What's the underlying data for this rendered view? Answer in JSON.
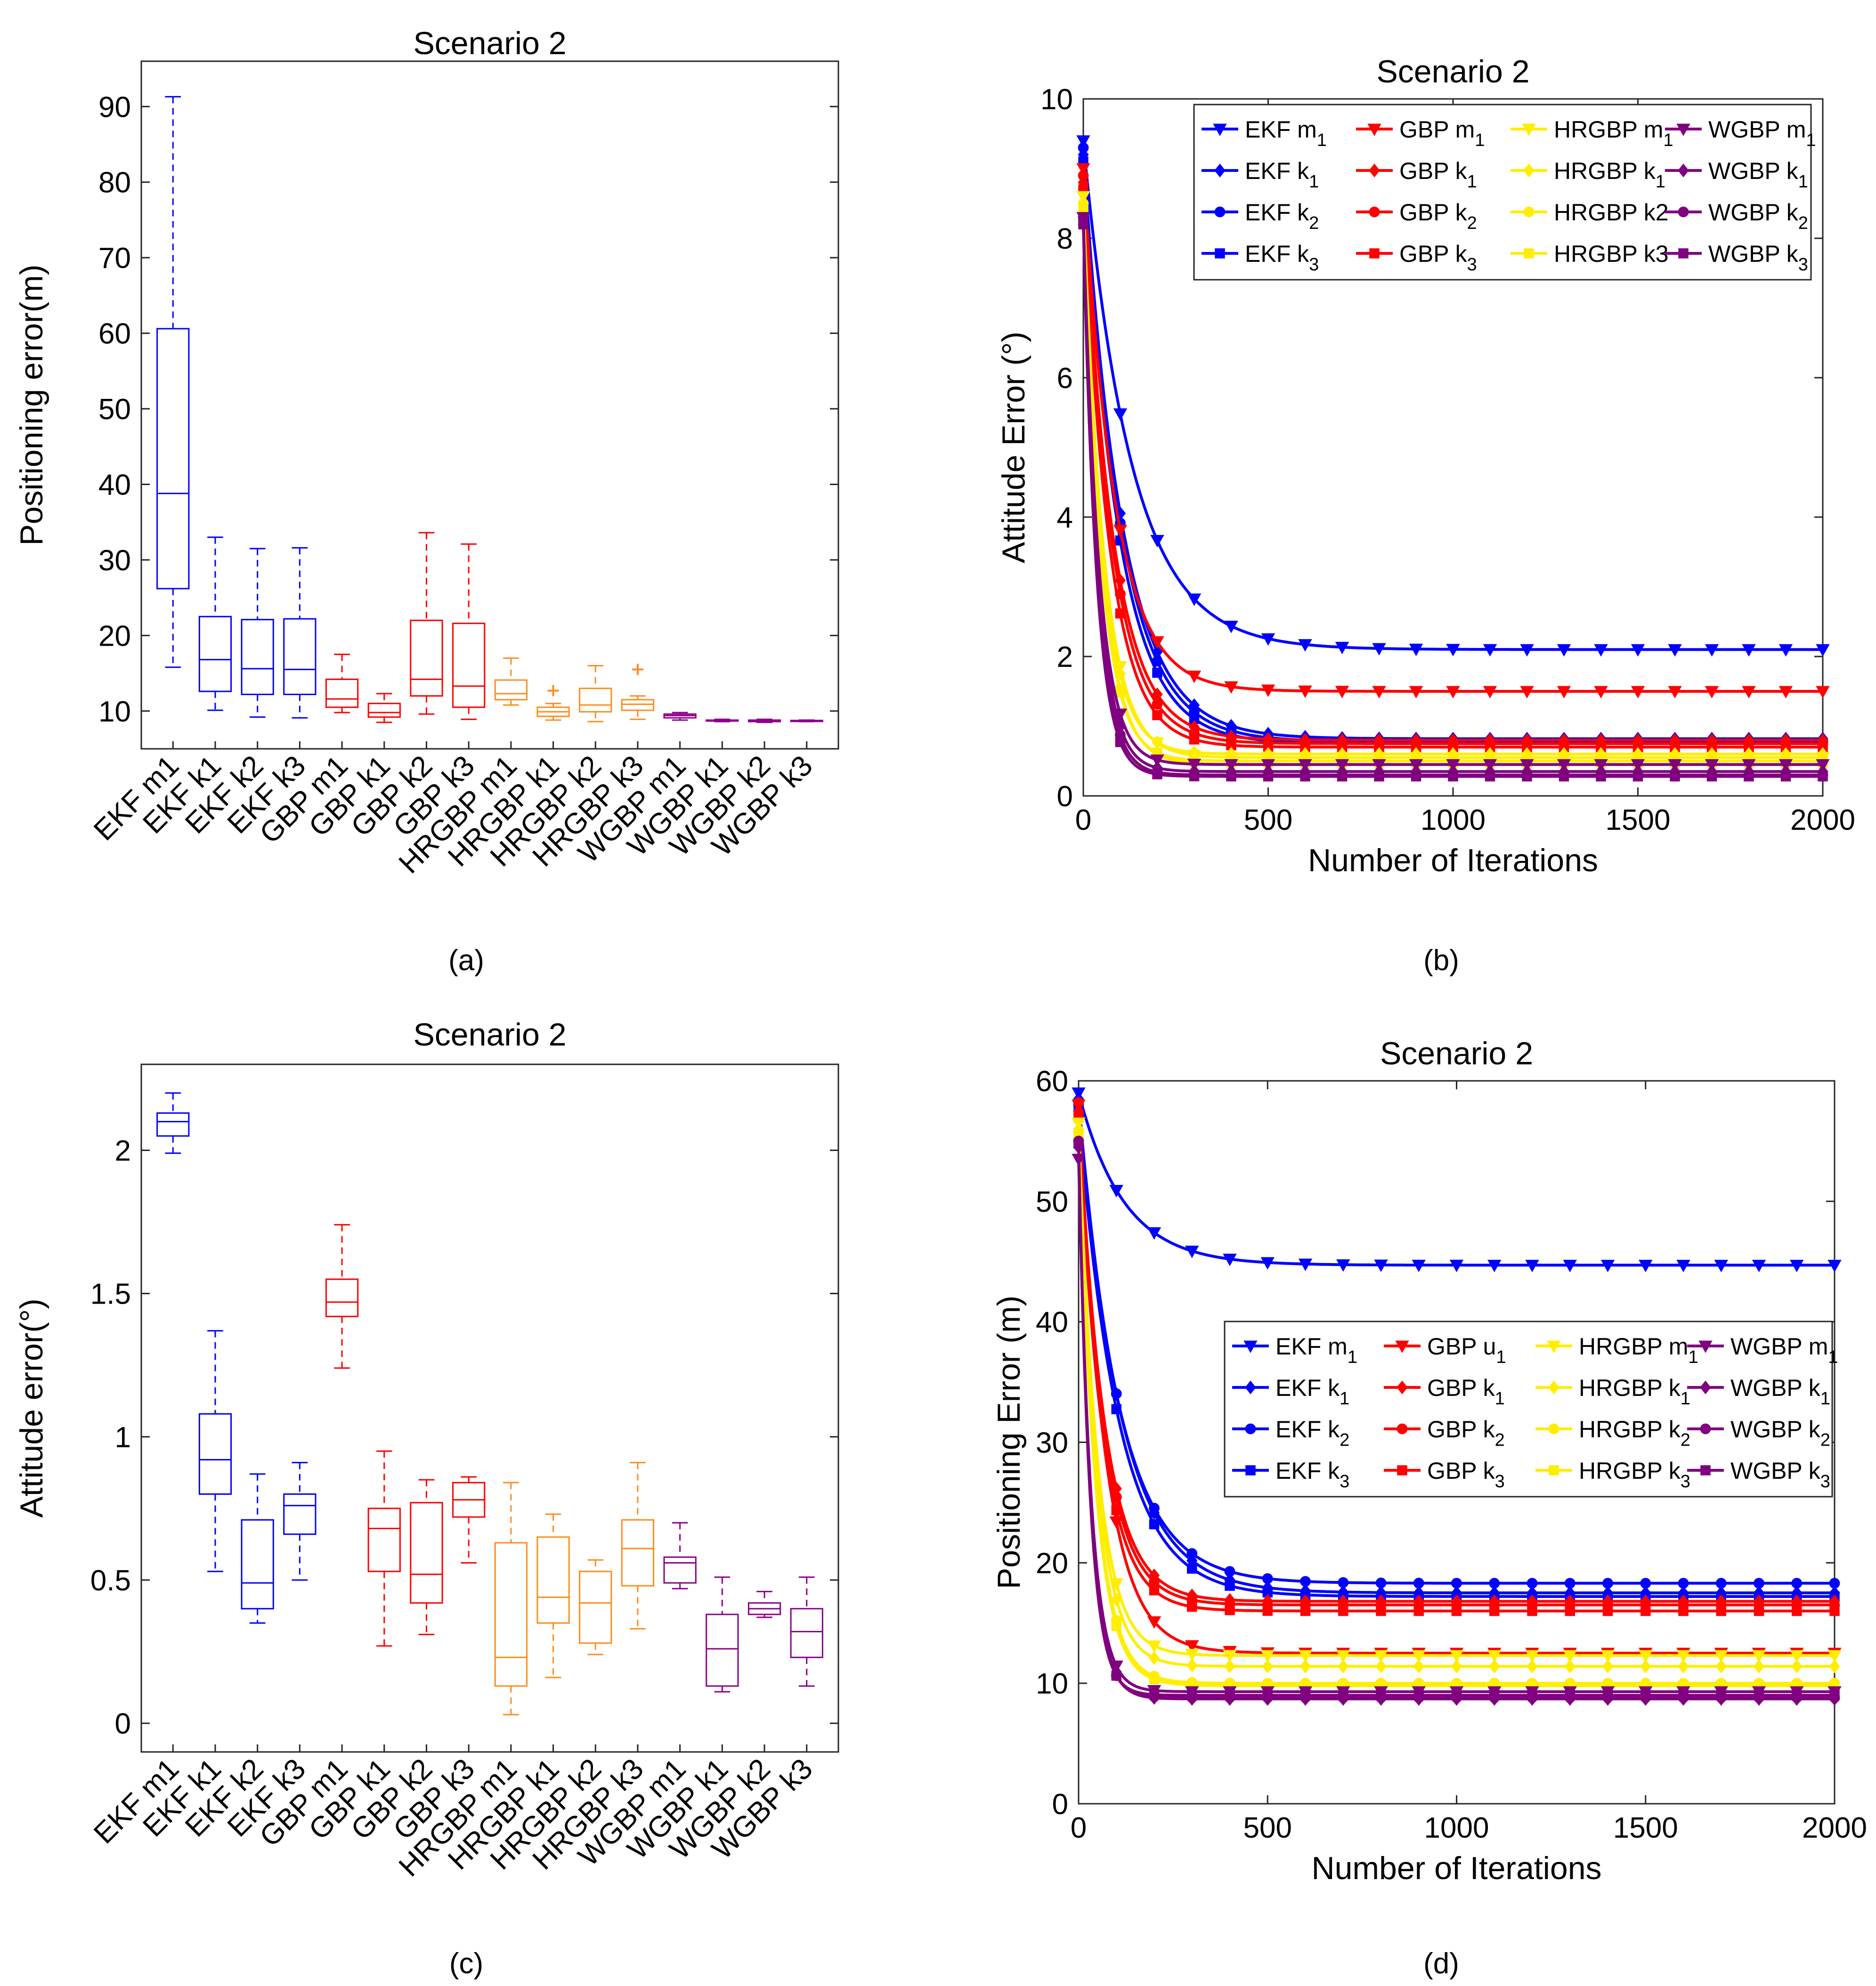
{
  "figure": {
    "captions": [
      "(a)",
      "(b)",
      "(c)",
      "(d)"
    ]
  },
  "panel_a": {
    "caption": "(a)",
    "chart_data": {
      "type": "box",
      "title": "Scenario 2",
      "xlabel": "",
      "ylabel": "Positioning error(m)",
      "ylim": [
        5,
        96
      ],
      "yticks": [
        10,
        20,
        30,
        40,
        50,
        60,
        70,
        80,
        90
      ],
      "categories": [
        "EKF m1",
        "EKF k1",
        "EKF k2",
        "EKF k3",
        "GBP m1",
        "GBP k1",
        "GBP k2",
        "GBP k3",
        "HRGBP m1",
        "HRGBP k1",
        "HRGBP k2",
        "HRGBP k3",
        "WGBP m1",
        "WGBP k1",
        "WGBP k2",
        "WGBP k3"
      ],
      "colors": [
        "#0000ff",
        "#0000ff",
        "#0000ff",
        "#0000ff",
        "#ff0000",
        "#ff0000",
        "#ff0000",
        "#ff0000",
        "#ff8c1a",
        "#ff8c1a",
        "#ff8c1a",
        "#ff8c1a",
        "#8b008b",
        "#8b008b",
        "#8b008b",
        "#8b008b"
      ],
      "boxes": [
        {
          "min": 15.8,
          "q1": 26.2,
          "median": 38.8,
          "q3": 60.6,
          "max": 91.3,
          "outliers": []
        },
        {
          "min": 10.1,
          "q1": 12.6,
          "median": 16.8,
          "q3": 22.5,
          "max": 33.0,
          "outliers": []
        },
        {
          "min": 9.2,
          "q1": 12.2,
          "median": 15.6,
          "q3": 22.1,
          "max": 31.5,
          "outliers": []
        },
        {
          "min": 9.1,
          "q1": 12.2,
          "median": 15.5,
          "q3": 22.2,
          "max": 31.6,
          "outliers": []
        },
        {
          "min": 9.8,
          "q1": 10.5,
          "median": 11.6,
          "q3": 14.2,
          "max": 17.5,
          "outliers": []
        },
        {
          "min": 8.5,
          "q1": 9.2,
          "median": 9.8,
          "q3": 11.0,
          "max": 12.3,
          "outliers": []
        },
        {
          "min": 9.6,
          "q1": 12.0,
          "median": 14.2,
          "q3": 22.0,
          "max": 33.6,
          "outliers": []
        },
        {
          "min": 8.9,
          "q1": 10.5,
          "median": 13.3,
          "q3": 21.6,
          "max": 32.1,
          "outliers": []
        },
        {
          "min": 10.8,
          "q1": 11.5,
          "median": 12.3,
          "q3": 14.1,
          "max": 17.0,
          "outliers": []
        },
        {
          "min": 8.8,
          "q1": 9.3,
          "median": 9.9,
          "q3": 10.5,
          "max": 11.0,
          "outliers": [
            12.7
          ]
        },
        {
          "min": 8.6,
          "q1": 9.9,
          "median": 10.8,
          "q3": 13.0,
          "max": 16.0,
          "outliers": []
        },
        {
          "min": 8.9,
          "q1": 10.1,
          "median": 10.9,
          "q3": 11.5,
          "max": 12.0,
          "outliers": [
            15.5
          ]
        },
        {
          "min": 8.8,
          "q1": 9.1,
          "median": 9.4,
          "q3": 9.6,
          "max": 9.8,
          "outliers": []
        },
        {
          "min": 8.6,
          "q1": 8.7,
          "median": 8.75,
          "q3": 8.8,
          "max": 8.9,
          "outliers": []
        },
        {
          "min": 8.5,
          "q1": 8.6,
          "median": 8.7,
          "q3": 8.8,
          "max": 8.9,
          "outliers": []
        },
        {
          "min": 8.6,
          "q1": 8.65,
          "median": 8.7,
          "q3": 8.75,
          "max": 8.8,
          "outliers": []
        }
      ]
    }
  },
  "panel_b": {
    "caption": "(b)",
    "chart_data": {
      "type": "line",
      "title": "Scenario 2",
      "xlabel": "Number of Iterations",
      "ylabel": "Attitude Error (°)",
      "xlim": [
        0,
        2000
      ],
      "ylim": [
        0,
        10
      ],
      "xticks": [
        0,
        500,
        1000,
        1500,
        2000
      ],
      "yticks": [
        0,
        2,
        4,
        6,
        8,
        10
      ],
      "legend_position": "top-right",
      "series": [
        {
          "name": "EKF m",
          "sub": "1",
          "color": "#0000ff",
          "marker": "tri-down",
          "start": 9.4,
          "final": 2.1,
          "tau": 130
        },
        {
          "name": "EKF k",
          "sub": "1",
          "color": "#0000ff",
          "marker": "diamond",
          "start": 9.2,
          "final": 0.82,
          "tau": 105
        },
        {
          "name": "EKF k",
          "sub": "2",
          "color": "#0000ff",
          "marker": "circle",
          "start": 9.3,
          "final": 0.78,
          "tau": 100
        },
        {
          "name": "EKF k",
          "sub": "3",
          "color": "#0000ff",
          "marker": "square",
          "start": 9.1,
          "final": 0.75,
          "tau": 95
        },
        {
          "name": "GBP m",
          "sub": "1",
          "color": "#ff0000",
          "marker": "tri-down",
          "start": 9.0,
          "final": 1.5,
          "tau": 85
        },
        {
          "name": "GBP k",
          "sub": "1",
          "color": "#ff0000",
          "marker": "diamond",
          "start": 8.8,
          "final": 0.8,
          "tau": 80
        },
        {
          "name": "GBP k",
          "sub": "2",
          "color": "#ff0000",
          "marker": "circle",
          "start": 8.9,
          "final": 0.75,
          "tau": 75
        },
        {
          "name": "GBP k",
          "sub": "3",
          "color": "#ff0000",
          "marker": "square",
          "start": 8.7,
          "final": 0.7,
          "tau": 70
        },
        {
          "name": "HRGBP m",
          "sub": "1",
          "color": "#ffee00",
          "marker": "tri-down",
          "start": 8.6,
          "final": 0.55,
          "tau": 55
        },
        {
          "name": "HRGBP k",
          "sub": "1",
          "color": "#ffee00",
          "marker": "diamond",
          "start": 8.5,
          "final": 0.6,
          "tau": 52
        },
        {
          "name": "HRGBP k2",
          "sub": "",
          "color": "#ffee00",
          "marker": "circle",
          "start": 8.5,
          "final": 0.45,
          "tau": 50
        },
        {
          "name": "HRGBP k3",
          "sub": "",
          "color": "#ffee00",
          "marker": "square",
          "start": 8.4,
          "final": 0.5,
          "tau": 48
        },
        {
          "name": "WGBP m",
          "sub": "1",
          "color": "#800080",
          "marker": "tri-down",
          "start": 8.3,
          "final": 0.45,
          "tau": 42
        },
        {
          "name": "WGBP k",
          "sub": "1",
          "color": "#800080",
          "marker": "diamond",
          "start": 8.2,
          "final": 0.35,
          "tau": 40
        },
        {
          "name": "WGBP k",
          "sub": "2",
          "color": "#800080",
          "marker": "circle",
          "start": 8.3,
          "final": 0.3,
          "tau": 38
        },
        {
          "name": "WGBP k",
          "sub": "3",
          "color": "#800080",
          "marker": "square",
          "start": 8.2,
          "final": 0.28,
          "tau": 36
        }
      ]
    }
  },
  "panel_c": {
    "caption": "(c)",
    "chart_data": {
      "type": "box",
      "title": "Scenario 2",
      "xlabel": "",
      "ylabel": "Attitude error(°)",
      "ylim": [
        -0.1,
        2.3
      ],
      "yticks": [
        0,
        0.5,
        1,
        1.5,
        2
      ],
      "categories": [
        "EKF m1",
        "EKF k1",
        "EKF k2",
        "EKF k3",
        "GBP m1",
        "GBP k1",
        "GBP k2",
        "GBP k3",
        "HRGBP m1",
        "HRGBP k1",
        "HRGBP k2",
        "HRGBP k3",
        "WGBP m1",
        "WGBP k1",
        "WGBP k2",
        "WGBP k3"
      ],
      "colors": [
        "#0000ff",
        "#0000ff",
        "#0000ff",
        "#0000ff",
        "#ff0000",
        "#ff0000",
        "#ff0000",
        "#ff0000",
        "#ff8c1a",
        "#ff8c1a",
        "#ff8c1a",
        "#ff8c1a",
        "#8b008b",
        "#8b008b",
        "#8b008b",
        "#8b008b"
      ],
      "boxes": [
        {
          "min": 1.99,
          "q1": 2.05,
          "median": 2.1,
          "q3": 2.13,
          "max": 2.2,
          "outliers": []
        },
        {
          "min": 0.53,
          "q1": 0.8,
          "median": 0.92,
          "q3": 1.08,
          "max": 1.37,
          "outliers": []
        },
        {
          "min": 0.35,
          "q1": 0.4,
          "median": 0.49,
          "q3": 0.71,
          "max": 0.87,
          "outliers": []
        },
        {
          "min": 0.5,
          "q1": 0.66,
          "median": 0.76,
          "q3": 0.8,
          "max": 0.91,
          "outliers": []
        },
        {
          "min": 1.24,
          "q1": 1.42,
          "median": 1.47,
          "q3": 1.55,
          "max": 1.74,
          "outliers": []
        },
        {
          "min": 0.27,
          "q1": 0.53,
          "median": 0.68,
          "q3": 0.75,
          "max": 0.95,
          "outliers": []
        },
        {
          "min": 0.31,
          "q1": 0.42,
          "median": 0.52,
          "q3": 0.77,
          "max": 0.85,
          "outliers": []
        },
        {
          "min": 0.56,
          "q1": 0.72,
          "median": 0.78,
          "q3": 0.84,
          "max": 0.86,
          "outliers": []
        },
        {
          "min": 0.03,
          "q1": 0.13,
          "median": 0.23,
          "q3": 0.63,
          "max": 0.84,
          "outliers": []
        },
        {
          "min": 0.16,
          "q1": 0.35,
          "median": 0.44,
          "q3": 0.65,
          "max": 0.73,
          "outliers": []
        },
        {
          "min": 0.24,
          "q1": 0.28,
          "median": 0.42,
          "q3": 0.53,
          "max": 0.57,
          "outliers": []
        },
        {
          "min": 0.33,
          "q1": 0.48,
          "median": 0.61,
          "q3": 0.71,
          "max": 0.91,
          "outliers": []
        },
        {
          "min": 0.47,
          "q1": 0.49,
          "median": 0.56,
          "q3": 0.58,
          "max": 0.7,
          "outliers": []
        },
        {
          "min": 0.11,
          "q1": 0.13,
          "median": 0.26,
          "q3": 0.38,
          "max": 0.51,
          "outliers": []
        },
        {
          "min": 0.37,
          "q1": 0.38,
          "median": 0.4,
          "q3": 0.42,
          "max": 0.46,
          "outliers": []
        },
        {
          "min": 0.13,
          "q1": 0.23,
          "median": 0.32,
          "q3": 0.4,
          "max": 0.51,
          "outliers": []
        }
      ]
    }
  },
  "panel_d": {
    "caption": "(d)",
    "chart_data": {
      "type": "line",
      "title": "Scenario 2",
      "xlabel": "Number of Iterations",
      "ylabel": "Positioning Error (m)",
      "xlim": [
        0,
        2000
      ],
      "ylim": [
        0,
        60
      ],
      "xticks": [
        0,
        500,
        1000,
        1500,
        2000
      ],
      "yticks": [
        0,
        10,
        20,
        30,
        40,
        50,
        60
      ],
      "legend_position": "center-right",
      "series": [
        {
          "name": "EKF m",
          "sub": "1",
          "color": "#0000ff",
          "marker": "tri-down",
          "start": 59.0,
          "final": 44.7,
          "tau": 120
        },
        {
          "name": "EKF k",
          "sub": "1",
          "color": "#0000ff",
          "marker": "diamond",
          "start": 58.5,
          "final": 17.5,
          "tau": 110
        },
        {
          "name": "EKF k",
          "sub": "2",
          "color": "#0000ff",
          "marker": "circle",
          "start": 58.0,
          "final": 18.3,
          "tau": 108
        },
        {
          "name": "EKF k",
          "sub": "3",
          "color": "#0000ff",
          "marker": "square",
          "start": 57.5,
          "final": 17.2,
          "tau": 105
        },
        {
          "name": "GBP u",
          "sub": "1",
          "color": "#ff0000",
          "marker": "tri-down",
          "start": 58.0,
          "final": 12.5,
          "tau": 70
        },
        {
          "name": "GBP k",
          "sub": "1",
          "color": "#ff0000",
          "marker": "diamond",
          "start": 57.5,
          "final": 16.8,
          "tau": 68
        },
        {
          "name": "GBP k",
          "sub": "2",
          "color": "#ff0000",
          "marker": "circle",
          "start": 58.2,
          "final": 16.5,
          "tau": 65
        },
        {
          "name": "GBP k",
          "sub": "3",
          "color": "#ff0000",
          "marker": "square",
          "start": 57.0,
          "final": 16.0,
          "tau": 63
        },
        {
          "name": "HRGBP m",
          "sub": "1",
          "color": "#ffee00",
          "marker": "tri-down",
          "start": 56.5,
          "final": 12.3,
          "tau": 50
        },
        {
          "name": "HRGBP k",
          "sub": "1",
          "color": "#ffee00",
          "marker": "diamond",
          "start": 56.0,
          "final": 11.4,
          "tau": 48
        },
        {
          "name": "HRGBP k",
          "sub": "2",
          "color": "#ffee00",
          "marker": "circle",
          "start": 55.8,
          "final": 10.0,
          "tau": 46
        },
        {
          "name": "HRGBP k",
          "sub": "3",
          "color": "#ffee00",
          "marker": "square",
          "start": 55.5,
          "final": 9.8,
          "tau": 45
        },
        {
          "name": "WGBP m",
          "sub": "1",
          "color": "#800080",
          "marker": "tri-down",
          "start": 53.5,
          "final": 9.3,
          "tau": 33
        },
        {
          "name": "WGBP k",
          "sub": "1",
          "color": "#800080",
          "marker": "diamond",
          "start": 54.5,
          "final": 8.7,
          "tau": 32
        },
        {
          "name": "WGBP k",
          "sub": "2",
          "color": "#800080",
          "marker": "circle",
          "start": 55.0,
          "final": 8.8,
          "tau": 31
        },
        {
          "name": "WGBP k",
          "sub": "3",
          "color": "#800080",
          "marker": "square",
          "start": 54.8,
          "final": 9.0,
          "tau": 30
        }
      ]
    }
  }
}
